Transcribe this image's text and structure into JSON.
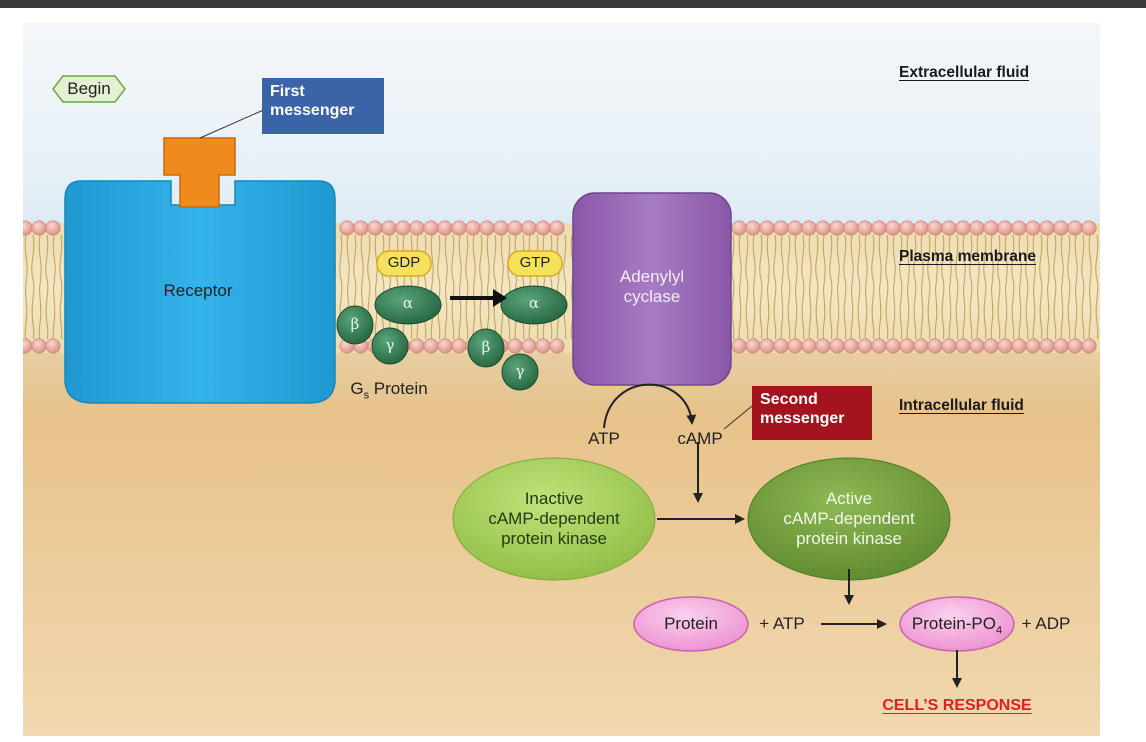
{
  "begin_label": "Begin",
  "zones": {
    "extracellular": "Extracellular fluid",
    "membrane": "Plasma membrane",
    "intracellular": "Intracellular fluid"
  },
  "first_messenger": {
    "line1": "First",
    "line2": "messenger"
  },
  "second_messenger": {
    "line1": "Second",
    "line2": "messenger"
  },
  "receptor": "Receptor",
  "g_protein": {
    "gdp": "GDP",
    "gtp": "GTP",
    "alpha": "α",
    "beta": "β",
    "gamma": "γ",
    "label_prefix": "G",
    "label_sub": "s",
    "label_suffix": " Protein"
  },
  "adenylyl_cyclase": {
    "line1": "Adenylyl",
    "line2": "cyclase"
  },
  "atp": "ATP",
  "camp": "cAMP",
  "inactive_kinase": {
    "line1": "Inactive",
    "line2": "cAMP-dependent",
    "line3": "protein kinase"
  },
  "active_kinase": {
    "line1": "Active",
    "line2": "cAMP-dependent",
    "line3": "protein kinase"
  },
  "protein": "Protein",
  "plus_atp": "+ ATP",
  "protein_po4": {
    "prefix": "Protein-PO",
    "sub": "4"
  },
  "plus_adp": "+ ADP",
  "response": "CELL’S RESPONSE",
  "colors": {
    "receptor": "#29a9e0",
    "first_messenger_box": "#3a63a8",
    "second_messenger_box": "#a3141e",
    "ligand": "#f08a1c",
    "adenylyl": "#9b6ab8",
    "g_subunit": "#2f7a4e",
    "gdp_gtp": "#f6e25a",
    "inactive_kinase": "#a9cf5c",
    "active_kinase": "#6f9e3a",
    "protein": "#f2a6d8",
    "response": "#e02020",
    "phospholipid_head": "#e9a8a0"
  }
}
